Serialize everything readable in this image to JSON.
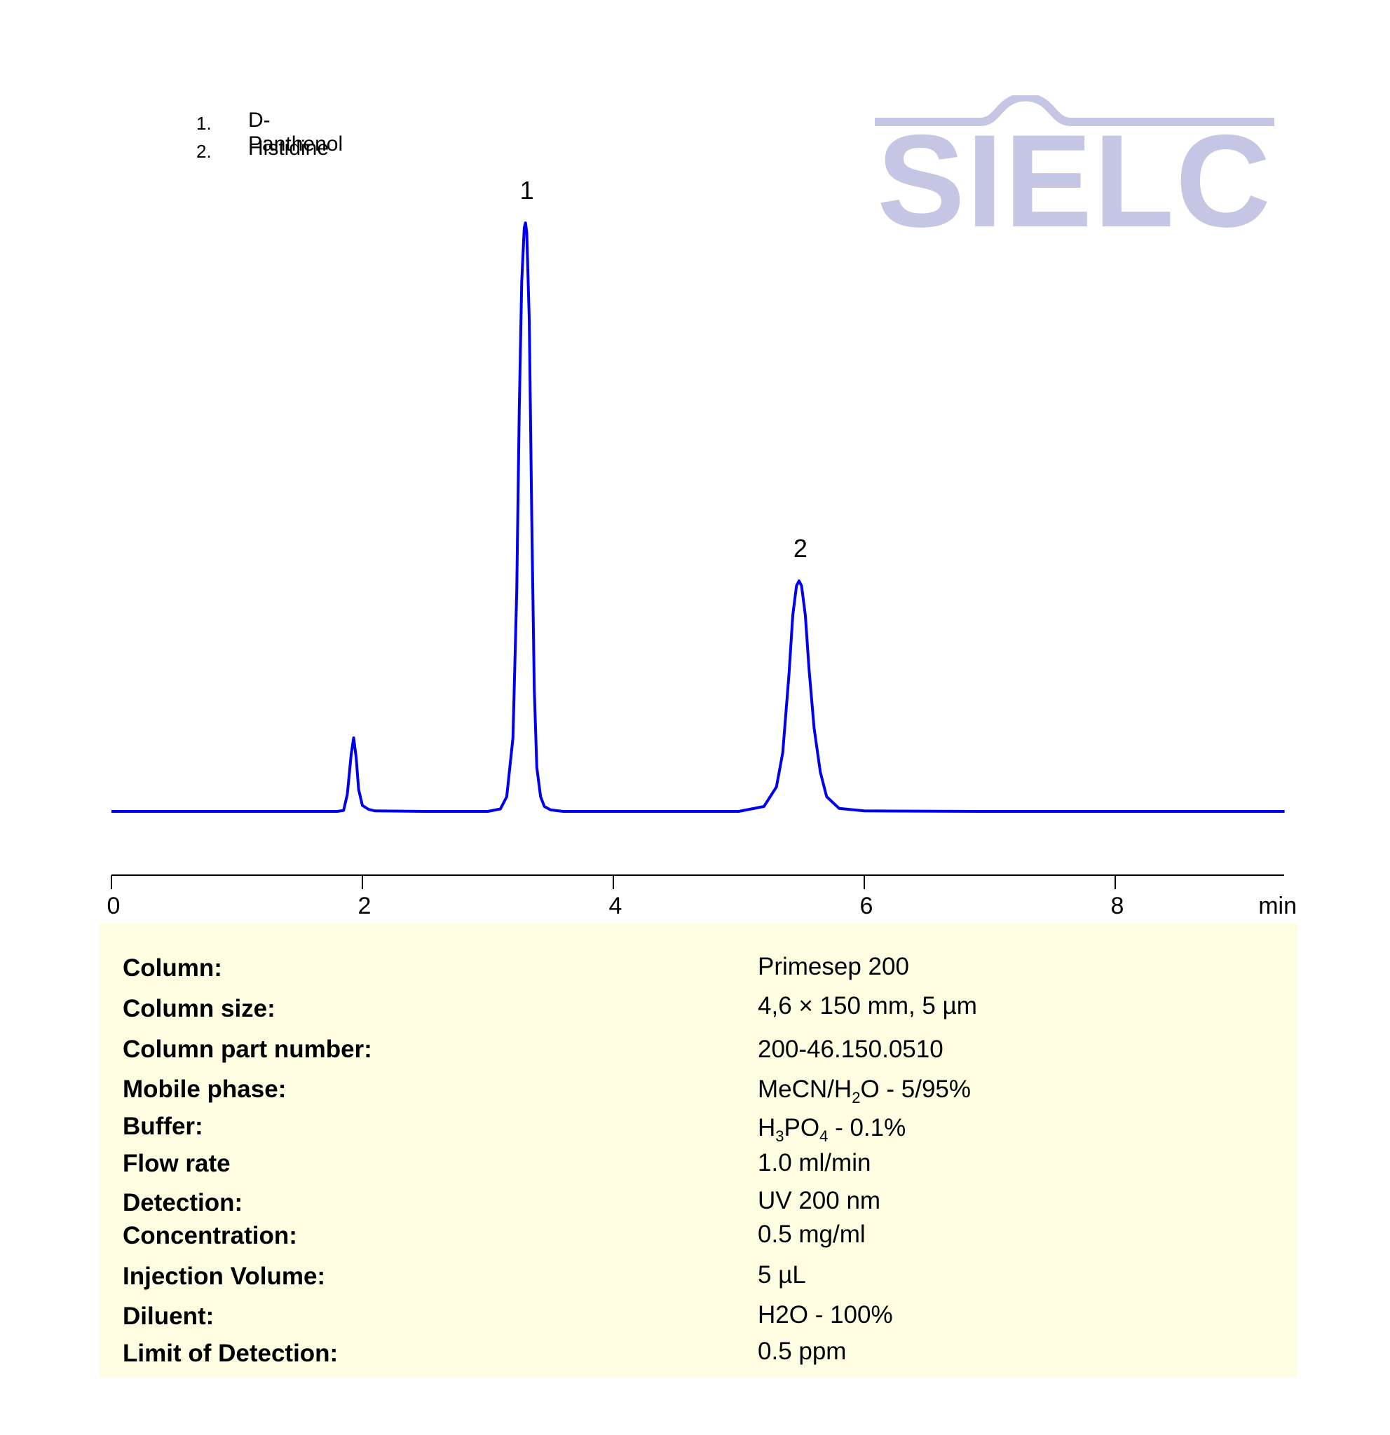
{
  "legend": [
    {
      "number": "1.",
      "name": "D-Panthenol"
    },
    {
      "number": "2.",
      "name": "Histidine"
    }
  ],
  "logo": {
    "text": "SIELC",
    "color": "#c5c6e3"
  },
  "chart_data": {
    "type": "line",
    "xlabel": "min",
    "xlim": [
      0,
      9.35
    ],
    "xticks": [
      0,
      2,
      4,
      6,
      8
    ],
    "grid": false,
    "line_color": "#0000ee",
    "series": [
      {
        "x": [
          0,
          1.7,
          1.8,
          1.85,
          1.88,
          1.91,
          1.93,
          1.95,
          1.97,
          2.0,
          2.05,
          2.1,
          2.5,
          3.0,
          3.1,
          3.15,
          3.2,
          3.23,
          3.25,
          3.27,
          3.29,
          3.3,
          3.31,
          3.33,
          3.35,
          3.37,
          3.39,
          3.42,
          3.45,
          3.5,
          3.6,
          4.0,
          5.0,
          5.2,
          5.3,
          5.35,
          5.4,
          5.43,
          5.46,
          5.48,
          5.5,
          5.53,
          5.56,
          5.6,
          5.65,
          5.7,
          5.8,
          6.0,
          7.0,
          9.35
        ],
        "y": [
          0.0,
          0.0,
          0.0,
          0.2,
          3.5,
          11.5,
          15.0,
          11.0,
          4.5,
          1.2,
          0.4,
          0.1,
          0.0,
          0.0,
          0.5,
          3.0,
          15.0,
          45.0,
          82.0,
          108.0,
          119.0,
          120.0,
          118.0,
          100.0,
          60.0,
          25.0,
          9.0,
          3.0,
          1.0,
          0.3,
          0.0,
          0.0,
          0.0,
          1.0,
          5.0,
          12.0,
          28.0,
          40.0,
          46.0,
          47.0,
          46.0,
          40.0,
          29.0,
          17.0,
          8.0,
          3.0,
          0.6,
          0.1,
          0.0,
          0.0
        ]
      }
    ],
    "peak_labels": [
      {
        "label": "1",
        "x": 3.3,
        "y": 120.0
      },
      {
        "label": "2",
        "x": 5.48,
        "y": 47.0
      }
    ]
  },
  "conditions": [
    {
      "label": "Column:",
      "value": "Primesep 200"
    },
    {
      "label": "Column size:",
      "value": "4,6 × 150 mm, 5 µm"
    },
    {
      "label": "Column part number:",
      "value": "200-46.150.0510"
    },
    {
      "label": "Mobile phase:",
      "value": "MeCN/H",
      "sub": "2",
      "value_after": "O - 5/95%"
    },
    {
      "label": "Buffer:",
      "value": "H",
      "sub": "3",
      "value_mid": "PO",
      "sub2": "4",
      "value_after": "  - 0.1%"
    },
    {
      "label": "Flow rate",
      "value": "1.0 ml/min"
    },
    {
      "label": "Detection:",
      "value": "UV 200 nm"
    },
    {
      "label": "Concentration:",
      "value": "0.5 mg/ml"
    },
    {
      "label": "Injection Volume:",
      "value": "5 µL"
    },
    {
      "label": "Diluent:",
      "value": "H2O - 100%"
    },
    {
      "label": "Limit of Detection:",
      "value": "0.5 ppm"
    }
  ]
}
